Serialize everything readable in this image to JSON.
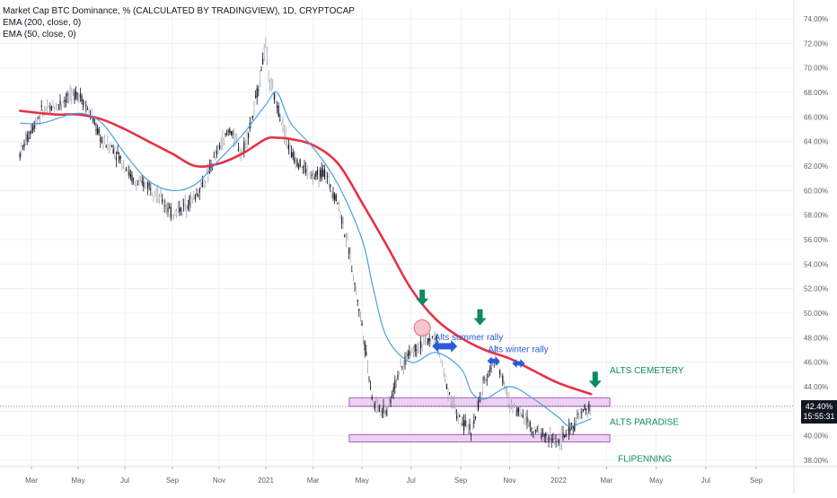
{
  "legend": {
    "title": "Market Cap BTC Dominance, % (CALCULATED BY TRADINGVIEW), 1D, CRYPTOCAP",
    "ema200": "EMA (200, close, 0)",
    "ema50": "EMA (50, close, 0)"
  },
  "price_tag": {
    "value": "42.40%",
    "countdown": "15:55:31"
  },
  "colors": {
    "ema200": "#e53244",
    "ema50": "#4aa3e0",
    "candle": "#131722",
    "zone_fill": "#e9c9f0",
    "zone_stroke": "#b05bc4",
    "annotation_green": "#0e8a64",
    "annotation_blue": "#2a5bd7",
    "circle_fill": "#f5b6c0"
  },
  "chart_data": {
    "type": "line",
    "title": "Market Cap BTC Dominance, % (CALCULATED BY TRADINGVIEW), 1D, CRYPTOCAP",
    "y_unit": "%",
    "ylim": [
      37.6,
      74.8
    ],
    "y_ticks": [
      "74.00%",
      "72.00%",
      "70.00%",
      "68.00%",
      "66.00%",
      "64.00%",
      "62.00%",
      "60.00%",
      "58.00%",
      "56.00%",
      "54.00%",
      "52.00%",
      "50.00%",
      "48.00%",
      "46.00%",
      "44.00%",
      "42.00%",
      "40.00%",
      "38.00%"
    ],
    "x_ticks": [
      "Mar",
      "May",
      "Jul",
      "Sep",
      "Nov",
      "2021",
      "Mar",
      "May",
      "Jul",
      "Sep",
      "Nov",
      "2022",
      "Mar",
      "May",
      "Jul",
      "Sep"
    ],
    "grid": true,
    "series": [
      {
        "name": "Market Cap BTC Dominance",
        "x": [
          "2020-02-15",
          "2020-03-01",
          "2020-03-15",
          "2020-04-01",
          "2020-04-15",
          "2020-05-01",
          "2020-05-15",
          "2020-06-01",
          "2020-06-15",
          "2020-07-01",
          "2020-07-15",
          "2020-08-01",
          "2020-08-15",
          "2020-09-01",
          "2020-09-10",
          "2020-10-01",
          "2020-10-15",
          "2020-11-01",
          "2020-11-15",
          "2020-12-01",
          "2020-12-15",
          "2021-01-01",
          "2021-01-05",
          "2021-01-15",
          "2021-02-01",
          "2021-02-15",
          "2021-03-01",
          "2021-03-15",
          "2021-04-01",
          "2021-04-15",
          "2021-05-01",
          "2021-05-15",
          "2021-06-01",
          "2021-06-15",
          "2021-07-01",
          "2021-07-15",
          "2021-08-01",
          "2021-08-15",
          "2021-09-01",
          "2021-09-15",
          "2021-10-01",
          "2021-10-15",
          "2021-11-01",
          "2021-11-15",
          "2021-12-01",
          "2021-12-15",
          "2022-01-01",
          "2022-01-15",
          "2022-02-01",
          "2022-02-10"
        ],
        "values": [
          63.0,
          65.0,
          66.5,
          66.8,
          67.5,
          68.0,
          66.5,
          64.0,
          63.5,
          62.0,
          60.5,
          60.5,
          59.5,
          58.0,
          58.5,
          59.5,
          61.0,
          63.5,
          65.0,
          63.0,
          66.0,
          72.0,
          69.0,
          67.0,
          63.0,
          62.0,
          61.0,
          61.5,
          59.0,
          55.0,
          49.0,
          42.5,
          42.0,
          45.0,
          47.0,
          47.5,
          48.0,
          44.0,
          41.0,
          40.5,
          44.5,
          46.5,
          42.5,
          42.0,
          40.5,
          40.0,
          39.5,
          40.5,
          42.0,
          42.4
        ]
      },
      {
        "name": "EMA (200, close, 0)",
        "x": [
          "2020-02-15",
          "2020-04-01",
          "2020-05-01",
          "2020-06-01",
          "2020-07-01",
          "2020-08-01",
          "2020-09-01",
          "2020-10-01",
          "2020-11-01",
          "2020-12-01",
          "2021-01-01",
          "2021-01-15",
          "2021-02-01",
          "2021-03-01",
          "2021-04-01",
          "2021-05-01",
          "2021-06-01",
          "2021-07-01",
          "2021-08-01",
          "2021-09-01",
          "2021-10-01",
          "2021-11-01",
          "2021-12-01",
          "2022-01-01",
          "2022-02-10"
        ],
        "values": [
          66.5,
          66.2,
          66.2,
          65.8,
          65.0,
          64.0,
          63.0,
          62.0,
          62.2,
          63.0,
          64.2,
          64.3,
          64.2,
          63.7,
          62.2,
          59.0,
          55.5,
          52.0,
          49.5,
          48.0,
          47.0,
          46.3,
          45.3,
          44.3,
          43.4
        ]
      },
      {
        "name": "EMA (50, close, 0)",
        "x": [
          "2020-02-15",
          "2020-03-15",
          "2020-05-01",
          "2020-06-01",
          "2020-07-01",
          "2020-08-01",
          "2020-09-01",
          "2020-10-01",
          "2020-11-01",
          "2020-12-01",
          "2021-01-01",
          "2021-01-15",
          "2021-02-01",
          "2021-03-01",
          "2021-04-01",
          "2021-05-01",
          "2021-05-15",
          "2021-06-01",
          "2021-07-01",
          "2021-08-01",
          "2021-09-01",
          "2021-09-15",
          "2021-10-01",
          "2021-11-01",
          "2021-12-01",
          "2022-01-01",
          "2022-01-15",
          "2022-02-10"
        ],
        "values": [
          65.5,
          65.5,
          66.3,
          65.5,
          63.0,
          60.8,
          60.0,
          60.5,
          62.5,
          64.5,
          67.0,
          68.0,
          65.5,
          63.5,
          60.5,
          56.0,
          52.0,
          48.0,
          46.0,
          46.8,
          45.5,
          43.5,
          43.0,
          44.0,
          43.0,
          41.5,
          40.8,
          41.4
        ]
      }
    ],
    "annotations": {
      "zones": [
        {
          "label": "ALTS CEMETERY",
          "y_low": 42.4,
          "y_high": 43.1,
          "x_start": "2021-04-15",
          "x_end": "2022-03-05"
        },
        {
          "label": "FLIPENNING",
          "y_low": 39.5,
          "y_high": 40.1,
          "x_start": "2021-04-15",
          "x_end": "2022-03-05"
        }
      ],
      "labels": {
        "alts_cemetery": "ALTS CEMETERY",
        "alts_paradise": "ALTS PARADISE",
        "flipenning": "FLIPENNING",
        "summer": "Alts summer rally",
        "winter": "Alts winter rally"
      },
      "down_arrows": [
        {
          "x": "2021-07-15",
          "y": 50.9
        },
        {
          "x": "2021-09-25",
          "y": 49.3
        },
        {
          "x": "2022-02-15",
          "y": 44.2
        }
      ],
      "circle": {
        "x": "2021-07-15",
        "y": 48.8
      },
      "double_arrows": [
        {
          "x": "2021-08-12",
          "y": 47.3
        },
        {
          "x": "2021-10-12",
          "y": 46.1
        },
        {
          "x": "2021-11-12",
          "y": 45.9
        }
      ],
      "last_value": 42.4
    }
  }
}
